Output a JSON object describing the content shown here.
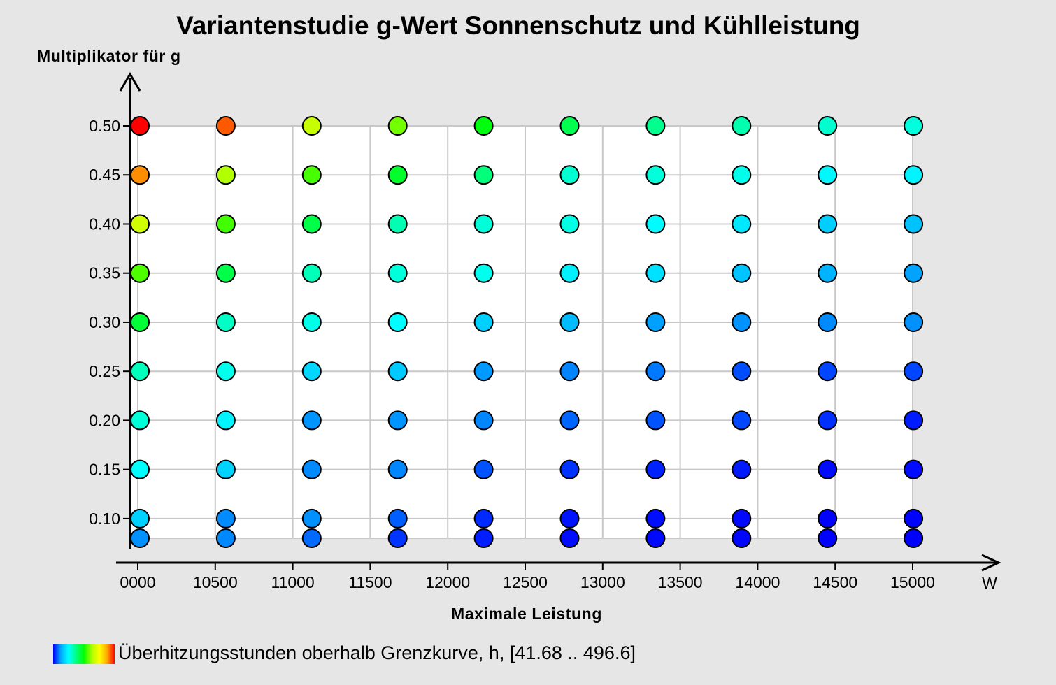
{
  "chart_data": {
    "type": "scatter",
    "title": "Variantenstudie g-Wert Sonnenschutz und Kühlleistung",
    "xlabel": "Maximale Leistung",
    "ylabel": "Multiplikator für g",
    "x_unit": "W",
    "x_tick_labels": [
      "0000",
      "10500",
      "11000",
      "11500",
      "12000",
      "12500",
      "13000",
      "13500",
      "14000",
      "14500",
      "15000"
    ],
    "y_tick_labels": [
      "0.50",
      "0.45",
      "0.40",
      "0.35",
      "0.30",
      "0.25",
      "0.20",
      "0.15",
      "0.10"
    ],
    "y_ticks": [
      0.5,
      0.45,
      0.4,
      0.35,
      0.3,
      0.25,
      0.2,
      0.15,
      0.1
    ],
    "ylim": [
      0.08,
      0.5
    ],
    "grid": true,
    "colormap": [
      "#0000ff",
      "#00aaff",
      "#00ffff",
      "#00ff80",
      "#00ff00",
      "#aaff00",
      "#ffff00",
      "#ffaa00",
      "#ff0000"
    ],
    "legend": {
      "label": "Überhitzungsstunden oberhalb Grenzkurve, h, [41.68 .. 496.6]",
      "range": [
        41.68,
        496.6
      ],
      "placement": "bottom-left"
    },
    "x": [
      10000,
      10550,
      11100,
      11650,
      12200,
      12750,
      13300,
      13850,
      14400,
      14950
    ],
    "y": [
      0.5,
      0.45,
      0.4,
      0.35,
      0.3,
      0.25,
      0.2,
      0.15,
      0.1,
      0.08
    ],
    "values": [
      [
        496.6,
        466.7,
        344.2,
        307.5,
        262.9,
        234.3,
        205.5,
        191.2,
        176.8,
        170.7
      ],
      [
        449.3,
        330.4,
        292.9,
        250.1,
        214.7,
        175.8,
        171.9,
        164.8,
        150.9,
        148.6
      ],
      [
        351.7,
        290.9,
        236.6,
        189.8,
        172.6,
        167.1,
        153.5,
        139.9,
        122.6,
        114.9
      ],
      [
        295.3,
        236.5,
        187.4,
        172.1,
        162.5,
        146.5,
        134.9,
        115.7,
        104.8,
        96.6
      ],
      [
        245.0,
        181.3,
        165.8,
        154.4,
        124.1,
        109.8,
        95.1,
        91.0,
        87.7,
        90.3
      ],
      [
        184.9,
        163.5,
        128.4,
        120.0,
        92.9,
        85.8,
        81.8,
        67.5,
        64.8,
        64.7
      ],
      [
        172.6,
        148.4,
        91.2,
        91.2,
        86.7,
        75.4,
        69.3,
        65.7,
        57.3,
        50.8
      ],
      [
        154.5,
        125.6,
        88.0,
        86.9,
        69.4,
        58.3,
        53.1,
        50.1,
        44.9,
        45.2
      ],
      [
        124.4,
        88.3,
        90.1,
        73.1,
        55.6,
        48.2,
        46.0,
        44.2,
        42.0,
        42.3
      ],
      [
        90.2,
        87.6,
        77.2,
        59.5,
        51.7,
        45.4,
        44.3,
        43.3,
        42.1,
        41.7
      ]
    ]
  }
}
